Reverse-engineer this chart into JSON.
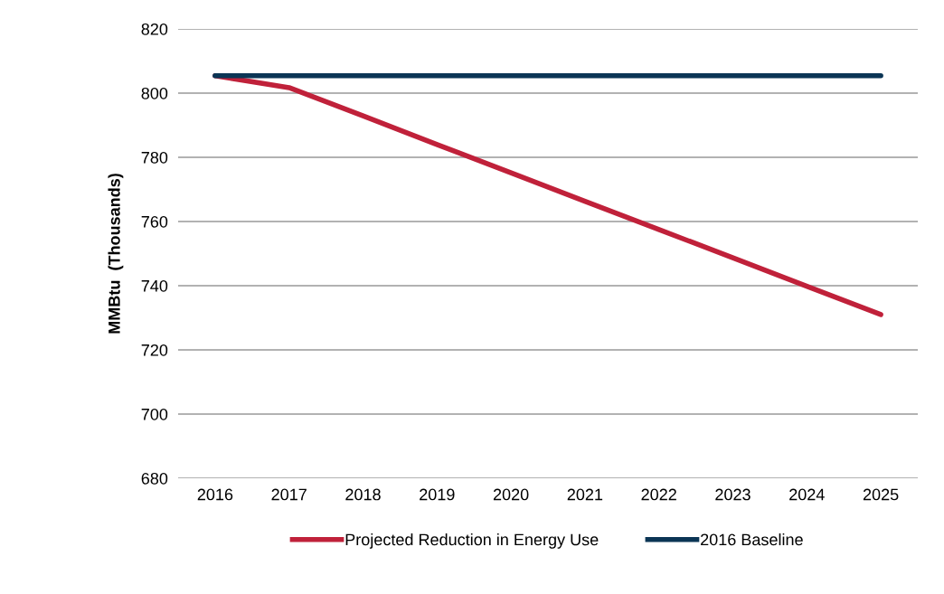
{
  "chart_data": {
    "type": "line",
    "ylabel": "MMBtu  (Thousands)",
    "categories": [
      "2016",
      "2017",
      "2018",
      "2019",
      "2020",
      "2021",
      "2022",
      "2023",
      "2024",
      "2025"
    ],
    "series": [
      {
        "name": "Projected Reduction in Energy Use",
        "color": "#c0213a",
        "values": [
          805.4,
          801.7,
          792.9,
          784.0,
          775.2,
          766.3,
          757.5,
          748.7,
          739.8,
          731.0
        ]
      },
      {
        "name": "2016 Baseline",
        "color": "#0b3555",
        "values": [
          805.4,
          805.4,
          805.4,
          805.4,
          805.4,
          805.4,
          805.4,
          805.4,
          805.4,
          805.4
        ]
      }
    ],
    "ylim": [
      680,
      820
    ],
    "yticks": [
      680,
      700,
      720,
      740,
      760,
      780,
      800,
      820
    ],
    "grid": "y",
    "legend": "bottom",
    "marker": "none",
    "line_style": "solid"
  }
}
